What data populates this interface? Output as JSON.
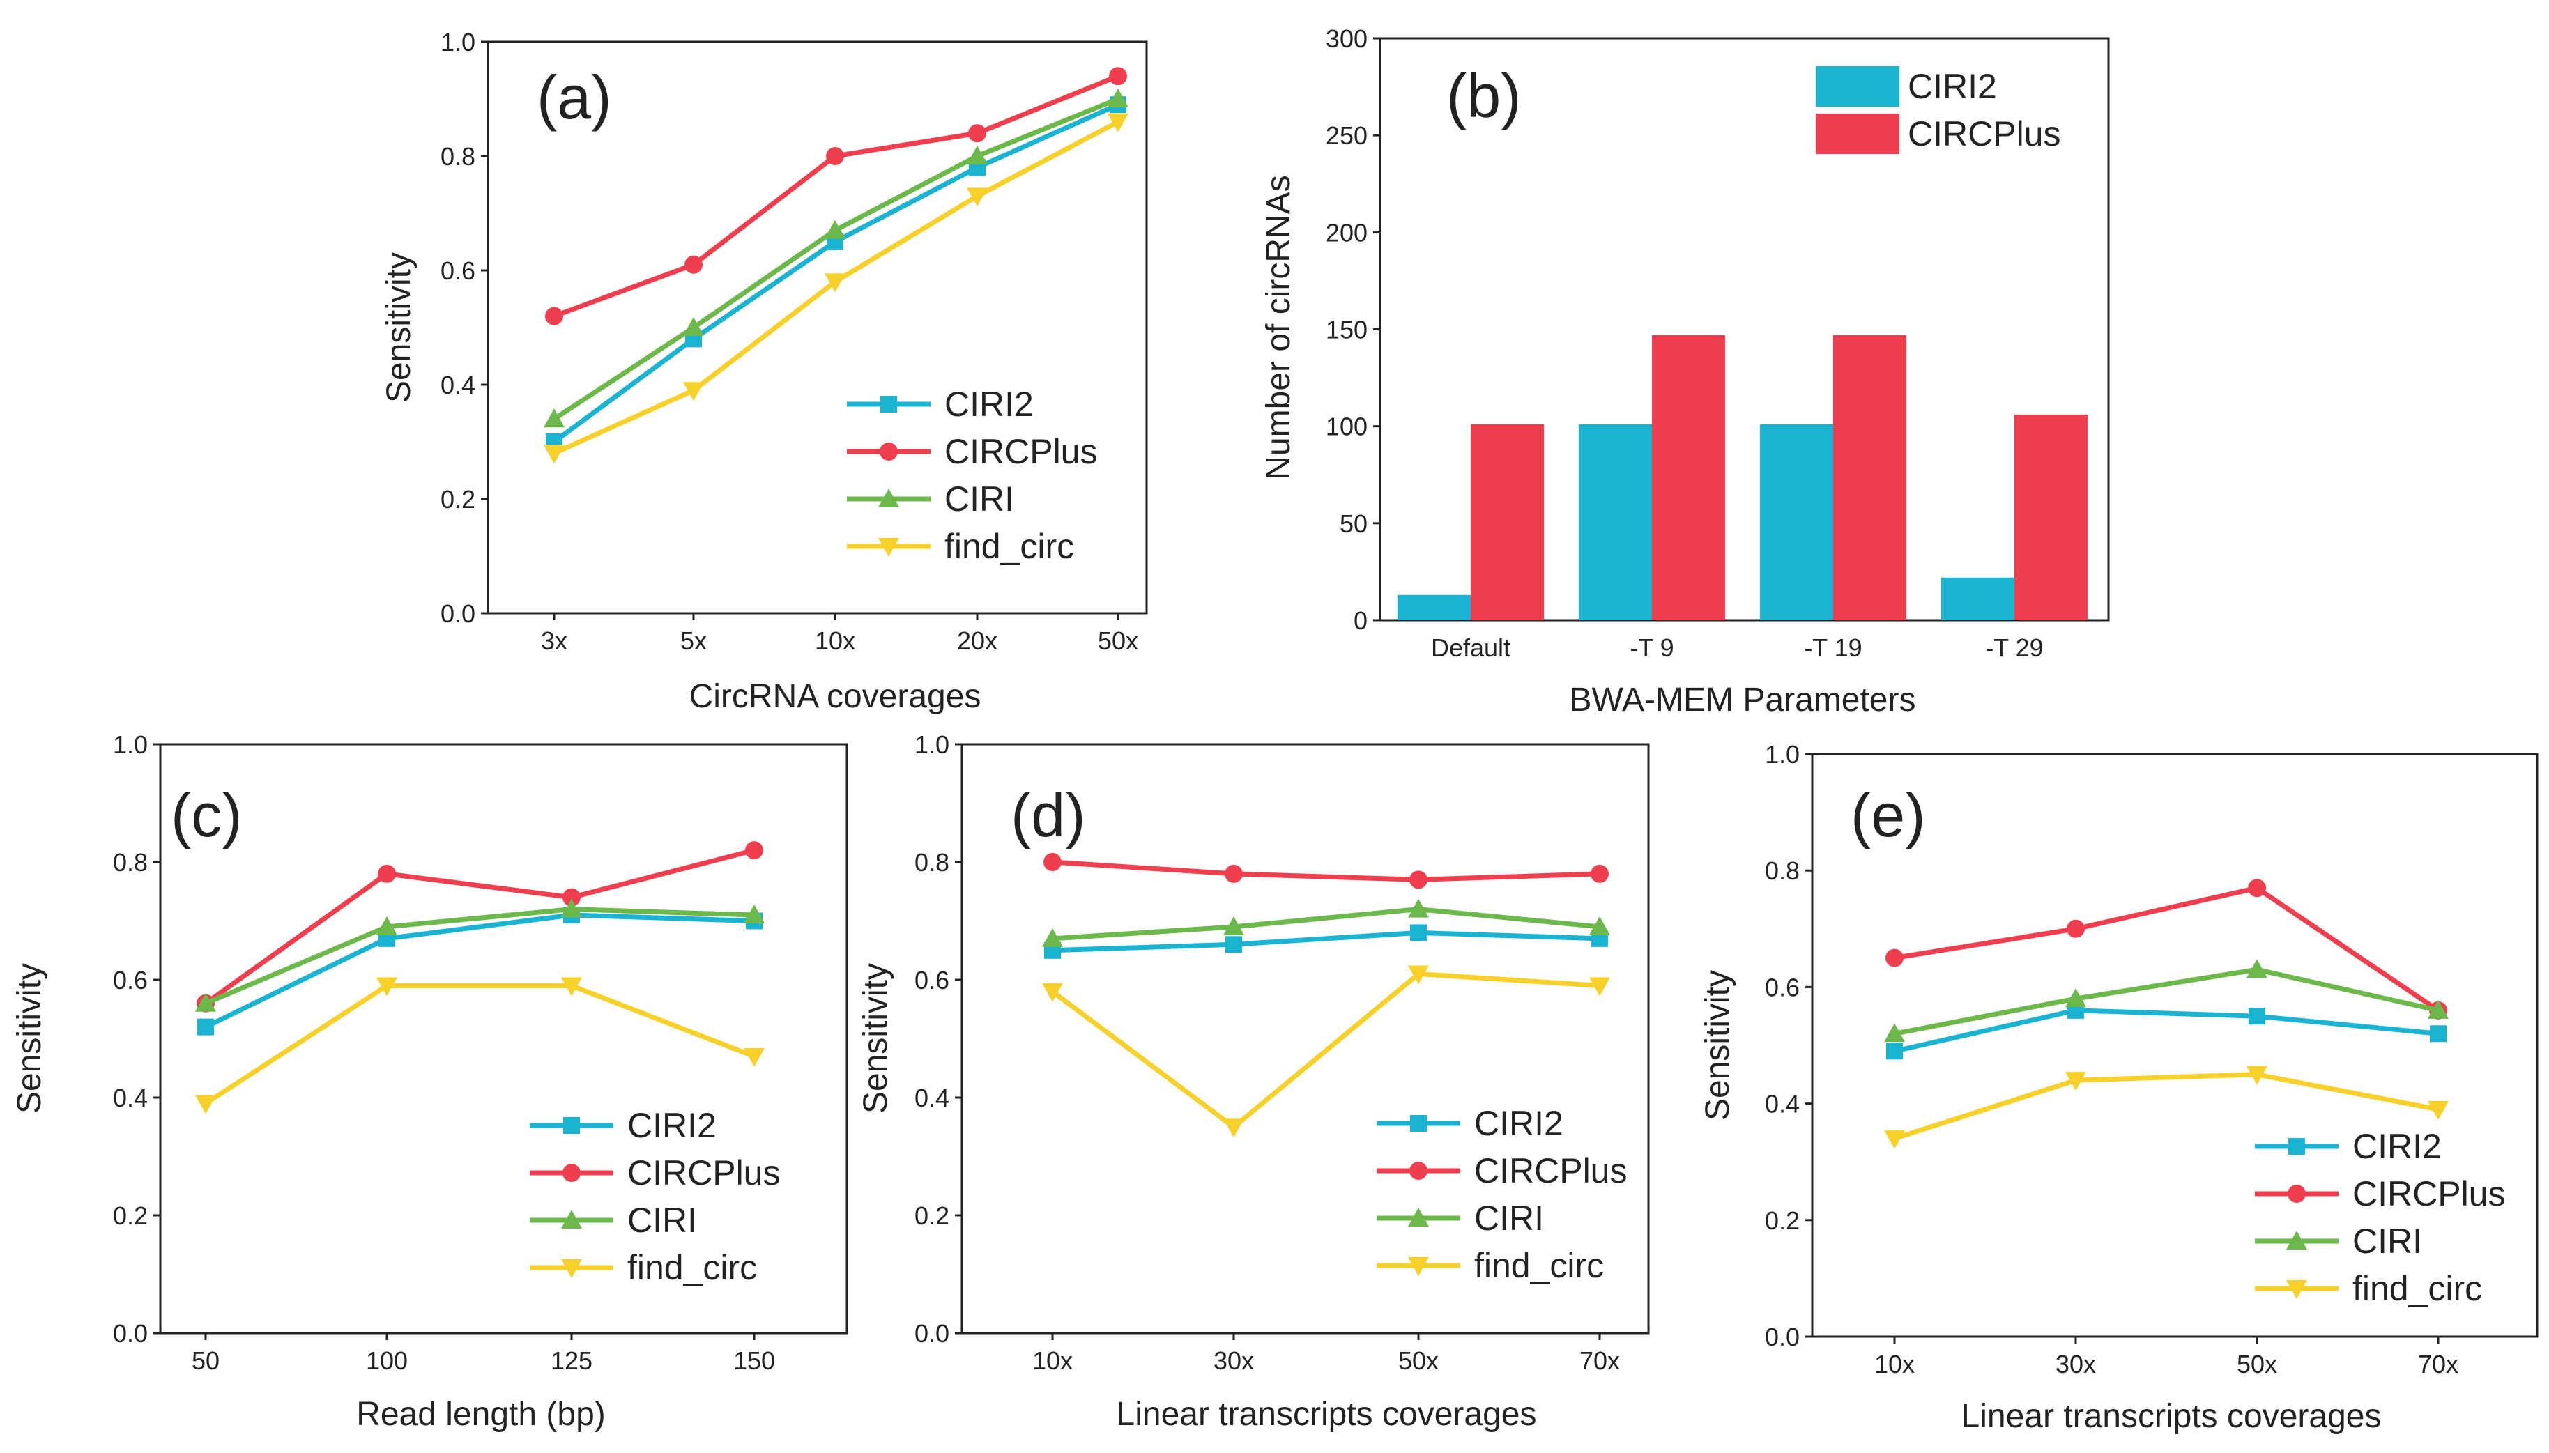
{
  "figure": {
    "colors": {
      "CIRI2": "#1ab3d1",
      "CIRCPlus": "#ef3f4e",
      "CIRI": "#6cb84a",
      "find_circ": "#f8d02a"
    }
  },
  "chart_data": [
    {
      "panel": "(a)",
      "type": "line",
      "x": [
        "3x",
        "5x",
        "10x",
        "20x",
        "50x"
      ],
      "xlabel": "CircRNA coverages",
      "ylabel": "Sensitivity",
      "ylim": [
        0,
        1
      ],
      "yticks": [
        "0.0",
        "0.2",
        "0.4",
        "0.6",
        "0.8",
        "1.0"
      ],
      "legend": "lower-right",
      "series": [
        {
          "name": "CIRI2",
          "marker": "square",
          "values": [
            0.3,
            0.48,
            0.65,
            0.78,
            0.89
          ]
        },
        {
          "name": "CIRCPlus",
          "marker": "circle",
          "values": [
            0.52,
            0.61,
            0.8,
            0.84,
            0.94
          ]
        },
        {
          "name": "CIRI",
          "marker": "triangle-up",
          "values": [
            0.34,
            0.5,
            0.67,
            0.8,
            0.9
          ]
        },
        {
          "name": "find_circ",
          "marker": "triangle-down",
          "values": [
            0.28,
            0.39,
            0.58,
            0.73,
            0.86
          ]
        }
      ]
    },
    {
      "panel": "(b)",
      "type": "bar",
      "categories": [
        "Default",
        "-T 9",
        "-T 19",
        "-T 29"
      ],
      "xlabel": "BWA-MEM Parameters",
      "ylabel": "Number of circRNAs",
      "ylim": [
        0,
        300
      ],
      "yticks": [
        "0",
        "50",
        "100",
        "150",
        "200",
        "250",
        "300"
      ],
      "legend": "top-right",
      "series": [
        {
          "name": "CIRI2",
          "values": [
            13,
            101,
            101,
            22
          ]
        },
        {
          "name": "CIRCPlus",
          "values": [
            101,
            147,
            147,
            106
          ]
        }
      ]
    },
    {
      "panel": "(c)",
      "type": "line",
      "x": [
        "50",
        "100",
        "125",
        "150"
      ],
      "xlabel": "Read length (bp)",
      "ylabel": "Sensitivity",
      "ylim": [
        0,
        1
      ],
      "yticks": [
        "0.0",
        "0.2",
        "0.4",
        "0.6",
        "0.8",
        "1.0"
      ],
      "legend": "lower-right",
      "series": [
        {
          "name": "CIRI2",
          "marker": "square",
          "values": [
            0.52,
            0.67,
            0.71,
            0.7
          ]
        },
        {
          "name": "CIRCPlus",
          "marker": "circle",
          "values": [
            0.56,
            0.78,
            0.74,
            0.82
          ]
        },
        {
          "name": "CIRI",
          "marker": "triangle-up",
          "values": [
            0.56,
            0.69,
            0.72,
            0.71
          ]
        },
        {
          "name": "find_circ",
          "marker": "triangle-down",
          "values": [
            0.39,
            0.59,
            0.59,
            0.47
          ]
        }
      ]
    },
    {
      "panel": "(d)",
      "type": "line",
      "x": [
        "10x",
        "30x",
        "50x",
        "70x"
      ],
      "xlabel": "Linear transcripts coverages",
      "ylabel": "Sensitivity",
      "ylim": [
        0,
        1
      ],
      "yticks": [
        "0.0",
        "0.2",
        "0.4",
        "0.6",
        "0.8",
        "1.0"
      ],
      "legend": "lower-right",
      "series": [
        {
          "name": "CIRI2",
          "marker": "square",
          "values": [
            0.65,
            0.66,
            0.68,
            0.67
          ]
        },
        {
          "name": "CIRCPlus",
          "marker": "circle",
          "values": [
            0.8,
            0.78,
            0.77,
            0.78
          ]
        },
        {
          "name": "CIRI",
          "marker": "triangle-up",
          "values": [
            0.67,
            0.69,
            0.72,
            0.69
          ]
        },
        {
          "name": "find_circ",
          "marker": "triangle-down",
          "values": [
            0.58,
            0.35,
            0.61,
            0.59
          ]
        }
      ]
    },
    {
      "panel": "(e)",
      "type": "line",
      "x": [
        "10x",
        "30x",
        "50x",
        "70x"
      ],
      "xlabel": "Linear transcripts coverages",
      "ylabel": "Sensitivity",
      "ylim": [
        0,
        1
      ],
      "yticks": [
        "0.0",
        "0.2",
        "0.4",
        "0.6",
        "0.8",
        "1.0"
      ],
      "legend": "lower-right",
      "series": [
        {
          "name": "CIRI2",
          "marker": "square",
          "values": [
            0.49,
            0.56,
            0.55,
            0.52
          ]
        },
        {
          "name": "CIRCPlus",
          "marker": "circle",
          "values": [
            0.65,
            0.7,
            0.77,
            0.56
          ]
        },
        {
          "name": "CIRI",
          "marker": "triangle-up",
          "values": [
            0.52,
            0.58,
            0.63,
            0.56
          ]
        },
        {
          "name": "find_circ",
          "marker": "triangle-down",
          "values": [
            0.34,
            0.44,
            0.45,
            0.39
          ]
        }
      ]
    }
  ]
}
